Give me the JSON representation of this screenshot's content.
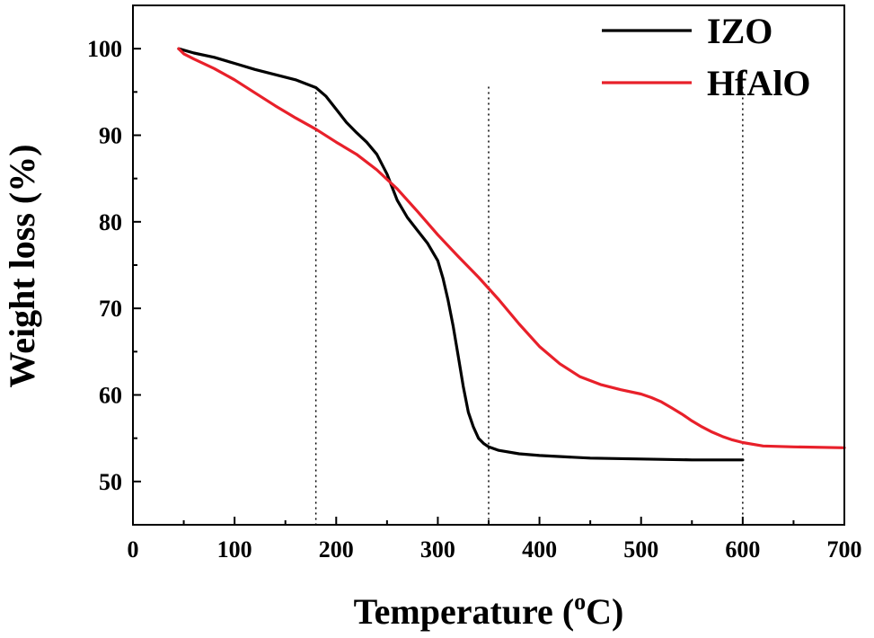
{
  "chart_data": {
    "type": "line",
    "xlabel": "Temperature (",
    "xlabel_unit_sup": "o",
    "xlabel_unit_tail": "C)",
    "ylabel": "Weight loss (%)",
    "xlim": [
      0,
      700
    ],
    "ylim": [
      45,
      105
    ],
    "x_ticks": [
      0,
      100,
      200,
      300,
      400,
      500,
      600,
      700
    ],
    "y_ticks": [
      50,
      60,
      70,
      80,
      90,
      100
    ],
    "legend_position": "top-right",
    "grid": false,
    "reference_lines_x": [
      180,
      350,
      600
    ],
    "series": [
      {
        "name": "IZO",
        "color": "#000000",
        "x": [
          45,
          60,
          80,
          100,
          120,
          140,
          160,
          180,
          190,
          200,
          210,
          220,
          230,
          240,
          250,
          260,
          270,
          280,
          290,
          300,
          305,
          310,
          315,
          320,
          325,
          330,
          335,
          340,
          345,
          350,
          360,
          380,
          400,
          450,
          500,
          550,
          600
        ],
        "y": [
          100,
          99.5,
          99.0,
          98.3,
          97.6,
          97.0,
          96.4,
          95.5,
          94.5,
          93.0,
          91.5,
          90.3,
          89.2,
          87.8,
          85.5,
          82.5,
          80.5,
          79.0,
          77.5,
          75.5,
          73.5,
          71.0,
          68.0,
          64.5,
          61.0,
          58.0,
          56.3,
          55.0,
          54.4,
          54.0,
          53.6,
          53.2,
          53.0,
          52.7,
          52.6,
          52.5,
          52.5
        ]
      },
      {
        "name": "HfAlO",
        "color": "#e8202a",
        "x": [
          45,
          50,
          60,
          80,
          100,
          120,
          140,
          160,
          180,
          200,
          220,
          240,
          260,
          280,
          300,
          320,
          340,
          350,
          360,
          380,
          400,
          420,
          440,
          460,
          480,
          500,
          510,
          520,
          530,
          540,
          550,
          560,
          570,
          580,
          590,
          600,
          620,
          650,
          700
        ],
        "y": [
          100,
          99.4,
          98.8,
          97.7,
          96.4,
          94.9,
          93.4,
          92.0,
          90.7,
          89.2,
          87.8,
          86.0,
          83.8,
          81.2,
          78.5,
          76.0,
          73.6,
          72.3,
          71.0,
          68.2,
          65.6,
          63.6,
          62.1,
          61.2,
          60.6,
          60.1,
          59.7,
          59.2,
          58.5,
          57.8,
          57.0,
          56.3,
          55.7,
          55.2,
          54.8,
          54.5,
          54.1,
          54.0,
          53.9
        ]
      }
    ]
  }
}
